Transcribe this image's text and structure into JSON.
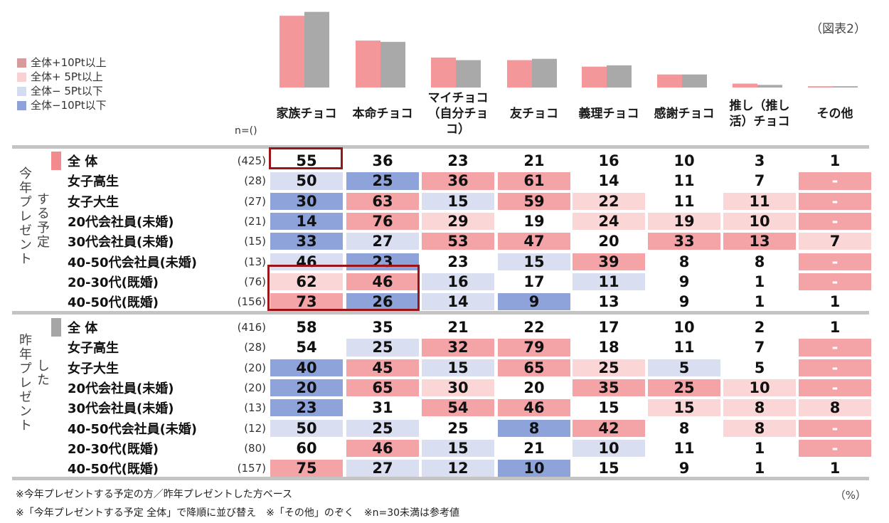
{
  "figure_label": "（図表2）",
  "legend": [
    {
      "label": "全体+10Pt以上",
      "color": "#d79b9b"
    },
    {
      "label": "全体+ 5Pt以上",
      "color": "#f8d2d2"
    },
    {
      "label": "全体− 5Pt以下",
      "color": "#d6dcef"
    },
    {
      "label": "全体−10Pt以下",
      "color": "#8ea2d9"
    }
  ],
  "n_header": "n=()",
  "columns": [
    {
      "label": "家族チョコ"
    },
    {
      "label": "本命チョコ"
    },
    {
      "label": "マイチョコ（自分チョコ）"
    },
    {
      "label": "友チョコ"
    },
    {
      "label": "義理チョコ"
    },
    {
      "label": "感謝チョコ"
    },
    {
      "label": "推し（推し活）チョコ"
    },
    {
      "label": "その他"
    }
  ],
  "sections": [
    {
      "label": "今年プレゼントする予定",
      "vert_main": "今年プレゼント",
      "vert_sub": "する予定",
      "marker_color": "#f28b8f",
      "rows": [
        {
          "label": "全 体",
          "n": "(425)",
          "values": [
            "55",
            "36",
            "23",
            "21",
            "16",
            "10",
            "3",
            "1"
          ],
          "tones": [
            "",
            "",
            "",
            "",
            "",
            "",
            "",
            ""
          ]
        },
        {
          "label": "女子高生",
          "n": "(28)",
          "values": [
            "50",
            "25",
            "36",
            "61",
            "14",
            "11",
            "7",
            "-"
          ],
          "tones": [
            "lb",
            "db",
            "p",
            "p",
            "",
            "",
            "",
            "p"
          ]
        },
        {
          "label": "女子大生",
          "n": "(27)",
          "values": [
            "30",
            "63",
            "15",
            "59",
            "22",
            "11",
            "11",
            "-"
          ],
          "tones": [
            "db",
            "p",
            "lb",
            "p",
            "lp",
            "",
            "lp",
            "p"
          ]
        },
        {
          "label": "20代会社員(未婚)",
          "n": "(21)",
          "values": [
            "14",
            "76",
            "29",
            "19",
            "24",
            "19",
            "10",
            "-"
          ],
          "tones": [
            "db",
            "p",
            "lp",
            "",
            "lp",
            "lp",
            "lp",
            "p"
          ]
        },
        {
          "label": "30代会社員(未婚)",
          "n": "(15)",
          "values": [
            "33",
            "27",
            "53",
            "47",
            "20",
            "33",
            "13",
            "7"
          ],
          "tones": [
            "db",
            "lb",
            "p",
            "p",
            "",
            "p",
            "p",
            "lp"
          ]
        },
        {
          "label": "40-50代会社員(未婚)",
          "n": "(13)",
          "values": [
            "46",
            "23",
            "23",
            "15",
            "39",
            "8",
            "8",
            "-"
          ],
          "tones": [
            "lb",
            "db",
            "",
            "lb",
            "p",
            "",
            "",
            "p"
          ]
        },
        {
          "label": "20-30代(既婚)",
          "n": "(76)",
          "values": [
            "62",
            "46",
            "16",
            "17",
            "11",
            "9",
            "1",
            "-"
          ],
          "tones": [
            "lp",
            "p",
            "lb",
            "",
            "lb",
            "",
            "",
            "p"
          ]
        },
        {
          "label": "40-50代(既婚)",
          "n": "(156)",
          "values": [
            "73",
            "26",
            "14",
            "9",
            "13",
            "9",
            "1",
            "1"
          ],
          "tones": [
            "p",
            "db",
            "lb",
            "db",
            "",
            "",
            "",
            ""
          ]
        }
      ]
    },
    {
      "label": "昨年プレゼントした",
      "vert_main": "昨年プレゼント",
      "vert_sub": "した",
      "marker_color": "#a6a6a6",
      "rows": [
        {
          "label": "全 体",
          "n": "(416)",
          "values": [
            "58",
            "35",
            "21",
            "22",
            "17",
            "10",
            "2",
            "1"
          ],
          "tones": [
            "",
            "",
            "",
            "",
            "",
            "",
            "",
            ""
          ]
        },
        {
          "label": "女子高生",
          "n": "(28)",
          "values": [
            "54",
            "25",
            "32",
            "79",
            "18",
            "11",
            "7",
            "-"
          ],
          "tones": [
            "",
            "lb",
            "p",
            "p",
            "",
            "",
            "",
            "p"
          ]
        },
        {
          "label": "女子大生",
          "n": "(20)",
          "values": [
            "40",
            "45",
            "15",
            "65",
            "25",
            "5",
            "5",
            "-"
          ],
          "tones": [
            "db",
            "p",
            "lb",
            "p",
            "lp",
            "lb",
            "",
            "p"
          ]
        },
        {
          "label": "20代会社員(未婚)",
          "n": "(20)",
          "values": [
            "20",
            "65",
            "30",
            "20",
            "35",
            "25",
            "10",
            "-"
          ],
          "tones": [
            "db",
            "p",
            "lp",
            "",
            "p",
            "p",
            "lp",
            "p"
          ]
        },
        {
          "label": "30代会社員(未婚)",
          "n": "(13)",
          "values": [
            "23",
            "31",
            "54",
            "46",
            "15",
            "15",
            "8",
            "8"
          ],
          "tones": [
            "db",
            "",
            "p",
            "p",
            "",
            "lp",
            "lp",
            "lp"
          ]
        },
        {
          "label": "40-50代会社員(未婚)",
          "n": "(12)",
          "values": [
            "50",
            "25",
            "25",
            "8",
            "42",
            "8",
            "8",
            "-"
          ],
          "tones": [
            "lb",
            "lb",
            "",
            "db",
            "p",
            "",
            "lp",
            "p"
          ]
        },
        {
          "label": "20-30代(既婚)",
          "n": "(80)",
          "values": [
            "60",
            "46",
            "15",
            "21",
            "10",
            "11",
            "1",
            "-"
          ],
          "tones": [
            "",
            "p",
            "lb",
            "",
            "lb",
            "",
            "",
            "p"
          ]
        },
        {
          "label": "40-50代(既婚)",
          "n": "(157)",
          "values": [
            "75",
            "27",
            "12",
            "10",
            "15",
            "9",
            "1",
            "1"
          ],
          "tones": [
            "p",
            "lb",
            "lb",
            "db",
            "",
            "",
            "",
            ""
          ]
        }
      ]
    }
  ],
  "notes": [
    "※今年プレゼントする予定の方／昨年プレゼントした方ベース",
    "※「今年プレゼントする予定 全体」で降順に並び替え　※「その他」のぞく　※n=30未満は参考値"
  ],
  "unit": "（%）",
  "tone_colors": {
    "p": "#f4a3a6",
    "lp": "#fad6d6",
    "lb": "#d9def0",
    "db": "#8ea3da"
  },
  "chart_data": {
    "type": "bar",
    "categories": [
      "家族チョコ",
      "本命チョコ",
      "マイチョコ（自分チョコ）",
      "友チョコ",
      "義理チョコ",
      "感謝チョコ",
      "推し（推し活）チョコ",
      "その他"
    ],
    "series": [
      {
        "name": "今年プレゼントする予定",
        "values": [
          55,
          36,
          23,
          21,
          16,
          10,
          3,
          1
        ],
        "color": "#f4979b"
      },
      {
        "name": "昨年プレゼントした",
        "values": [
          58,
          35,
          21,
          22,
          17,
          10,
          2,
          1
        ],
        "color": "#a9a9a9"
      }
    ],
    "ylim": [
      0,
      60
    ]
  }
}
